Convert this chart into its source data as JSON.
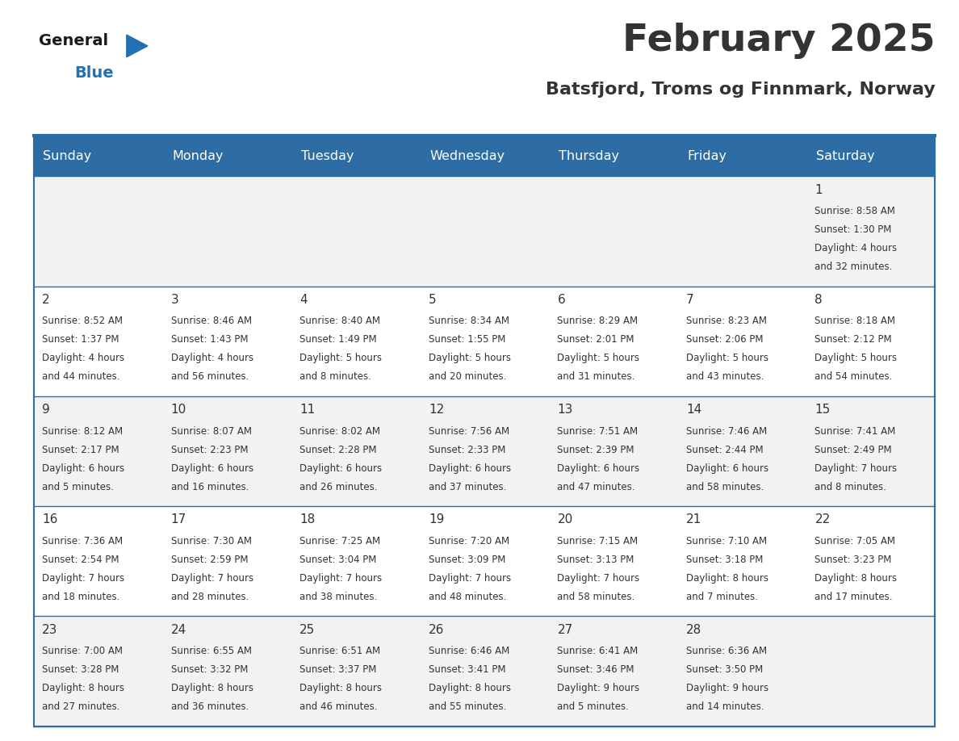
{
  "title": "February 2025",
  "subtitle": "Batsfjord, Troms og Finnmark, Norway",
  "header_bg": "#2E6DA4",
  "header_text": "#FFFFFF",
  "cell_bg_light": "#F2F2F2",
  "cell_bg_white": "#FFFFFF",
  "border_color": "#2E6DA4",
  "text_color": "#333333",
  "day_headers": [
    "Sunday",
    "Monday",
    "Tuesday",
    "Wednesday",
    "Thursday",
    "Friday",
    "Saturday"
  ],
  "logo_general_color": "#1a1a1a",
  "logo_blue_color": "#2271B3",
  "calendar_data": [
    [
      null,
      null,
      null,
      null,
      null,
      null,
      {
        "day": "1",
        "sunrise": "8:58 AM",
        "sunset": "1:30 PM",
        "daylight1": "Daylight: 4 hours",
        "daylight2": "and 32 minutes."
      }
    ],
    [
      {
        "day": "2",
        "sunrise": "8:52 AM",
        "sunset": "1:37 PM",
        "daylight1": "Daylight: 4 hours",
        "daylight2": "and 44 minutes."
      },
      {
        "day": "3",
        "sunrise": "8:46 AM",
        "sunset": "1:43 PM",
        "daylight1": "Daylight: 4 hours",
        "daylight2": "and 56 minutes."
      },
      {
        "day": "4",
        "sunrise": "8:40 AM",
        "sunset": "1:49 PM",
        "daylight1": "Daylight: 5 hours",
        "daylight2": "and 8 minutes."
      },
      {
        "day": "5",
        "sunrise": "8:34 AM",
        "sunset": "1:55 PM",
        "daylight1": "Daylight: 5 hours",
        "daylight2": "and 20 minutes."
      },
      {
        "day": "6",
        "sunrise": "8:29 AM",
        "sunset": "2:01 PM",
        "daylight1": "Daylight: 5 hours",
        "daylight2": "and 31 minutes."
      },
      {
        "day": "7",
        "sunrise": "8:23 AM",
        "sunset": "2:06 PM",
        "daylight1": "Daylight: 5 hours",
        "daylight2": "and 43 minutes."
      },
      {
        "day": "8",
        "sunrise": "8:18 AM",
        "sunset": "2:12 PM",
        "daylight1": "Daylight: 5 hours",
        "daylight2": "and 54 minutes."
      }
    ],
    [
      {
        "day": "9",
        "sunrise": "8:12 AM",
        "sunset": "2:17 PM",
        "daylight1": "Daylight: 6 hours",
        "daylight2": "and 5 minutes."
      },
      {
        "day": "10",
        "sunrise": "8:07 AM",
        "sunset": "2:23 PM",
        "daylight1": "Daylight: 6 hours",
        "daylight2": "and 16 minutes."
      },
      {
        "day": "11",
        "sunrise": "8:02 AM",
        "sunset": "2:28 PM",
        "daylight1": "Daylight: 6 hours",
        "daylight2": "and 26 minutes."
      },
      {
        "day": "12",
        "sunrise": "7:56 AM",
        "sunset": "2:33 PM",
        "daylight1": "Daylight: 6 hours",
        "daylight2": "and 37 minutes."
      },
      {
        "day": "13",
        "sunrise": "7:51 AM",
        "sunset": "2:39 PM",
        "daylight1": "Daylight: 6 hours",
        "daylight2": "and 47 minutes."
      },
      {
        "day": "14",
        "sunrise": "7:46 AM",
        "sunset": "2:44 PM",
        "daylight1": "Daylight: 6 hours",
        "daylight2": "and 58 minutes."
      },
      {
        "day": "15",
        "sunrise": "7:41 AM",
        "sunset": "2:49 PM",
        "daylight1": "Daylight: 7 hours",
        "daylight2": "and 8 minutes."
      }
    ],
    [
      {
        "day": "16",
        "sunrise": "7:36 AM",
        "sunset": "2:54 PM",
        "daylight1": "Daylight: 7 hours",
        "daylight2": "and 18 minutes."
      },
      {
        "day": "17",
        "sunrise": "7:30 AM",
        "sunset": "2:59 PM",
        "daylight1": "Daylight: 7 hours",
        "daylight2": "and 28 minutes."
      },
      {
        "day": "18",
        "sunrise": "7:25 AM",
        "sunset": "3:04 PM",
        "daylight1": "Daylight: 7 hours",
        "daylight2": "and 38 minutes."
      },
      {
        "day": "19",
        "sunrise": "7:20 AM",
        "sunset": "3:09 PM",
        "daylight1": "Daylight: 7 hours",
        "daylight2": "and 48 minutes."
      },
      {
        "day": "20",
        "sunrise": "7:15 AM",
        "sunset": "3:13 PM",
        "daylight1": "Daylight: 7 hours",
        "daylight2": "and 58 minutes."
      },
      {
        "day": "21",
        "sunrise": "7:10 AM",
        "sunset": "3:18 PM",
        "daylight1": "Daylight: 8 hours",
        "daylight2": "and 7 minutes."
      },
      {
        "day": "22",
        "sunrise": "7:05 AM",
        "sunset": "3:23 PM",
        "daylight1": "Daylight: 8 hours",
        "daylight2": "and 17 minutes."
      }
    ],
    [
      {
        "day": "23",
        "sunrise": "7:00 AM",
        "sunset": "3:28 PM",
        "daylight1": "Daylight: 8 hours",
        "daylight2": "and 27 minutes."
      },
      {
        "day": "24",
        "sunrise": "6:55 AM",
        "sunset": "3:32 PM",
        "daylight1": "Daylight: 8 hours",
        "daylight2": "and 36 minutes."
      },
      {
        "day": "25",
        "sunrise": "6:51 AM",
        "sunset": "3:37 PM",
        "daylight1": "Daylight: 8 hours",
        "daylight2": "and 46 minutes."
      },
      {
        "day": "26",
        "sunrise": "6:46 AM",
        "sunset": "3:41 PM",
        "daylight1": "Daylight: 8 hours",
        "daylight2": "and 55 minutes."
      },
      {
        "day": "27",
        "sunrise": "6:41 AM",
        "sunset": "3:46 PM",
        "daylight1": "Daylight: 9 hours",
        "daylight2": "and 5 minutes."
      },
      {
        "day": "28",
        "sunrise": "6:36 AM",
        "sunset": "3:50 PM",
        "daylight1": "Daylight: 9 hours",
        "daylight2": "and 14 minutes."
      },
      null
    ]
  ]
}
